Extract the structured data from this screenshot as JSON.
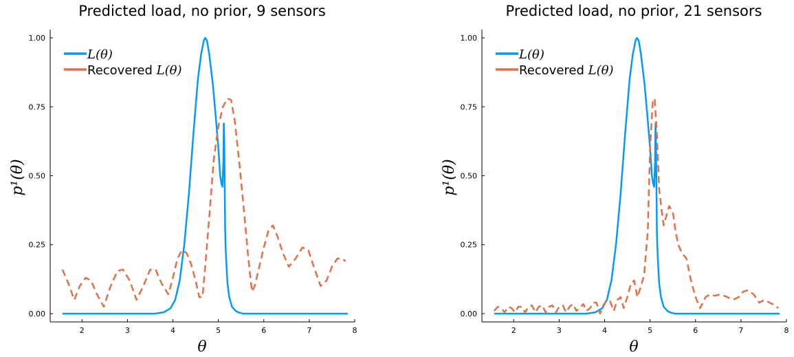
{
  "chart_data": [
    {
      "type": "line",
      "title": "Predicted load, no prior, 9 sensors",
      "xlabel": "θ",
      "ylabel": "p¹(θ)",
      "xlim": [
        1.3,
        8.0
      ],
      "ylim": [
        -0.03,
        1.03
      ],
      "xticks": [
        2,
        3,
        4,
        5,
        6,
        7,
        8
      ],
      "xtick_labels": [
        "2",
        "3",
        "4",
        "5",
        "6",
        "7",
        "8"
      ],
      "yticks": [
        0,
        0.25,
        0.5,
        0.75,
        1.0
      ],
      "ytick_labels": [
        "0.00",
        "0.25",
        "0.50",
        "0.75",
        "1.00"
      ],
      "grid": false,
      "legend_position": "top-left",
      "series": [
        {
          "name": "L(θ)",
          "legend_text": "",
          "legend_math": "L(θ)",
          "color": "#009AFA",
          "style": "solid",
          "x": [
            1.57,
            3.6,
            3.8,
            3.95,
            4.05,
            4.15,
            4.25,
            4.35,
            4.45,
            4.55,
            4.62,
            4.68,
            4.71,
            4.75,
            4.8,
            4.88,
            4.95,
            5.0,
            5.04,
            5.07,
            5.09,
            5.11,
            5.12,
            5.13,
            5.14,
            5.15,
            5.16,
            5.18,
            5.2,
            5.24,
            5.3,
            5.38,
            5.45,
            5.55,
            7.85
          ],
          "y": [
            0.0,
            0.0,
            0.005,
            0.02,
            0.05,
            0.12,
            0.25,
            0.43,
            0.65,
            0.85,
            0.94,
            0.99,
            1.0,
            0.99,
            0.94,
            0.83,
            0.7,
            0.6,
            0.5,
            0.47,
            0.46,
            0.55,
            0.69,
            0.62,
            0.46,
            0.3,
            0.24,
            0.17,
            0.11,
            0.06,
            0.025,
            0.01,
            0.004,
            0.0,
            0.0
          ]
        },
        {
          "name": "Recovered L(θ)",
          "legend_text": "Recovered ",
          "legend_math": "L(θ)",
          "color": "#E26F46",
          "style": "dashed",
          "x": [
            1.57,
            1.7,
            1.83,
            1.95,
            2.08,
            2.2,
            2.33,
            2.48,
            2.63,
            2.78,
            2.9,
            3.05,
            3.2,
            3.35,
            3.5,
            3.62,
            3.75,
            3.9,
            4.0,
            4.1,
            4.2,
            4.3,
            4.4,
            4.5,
            4.58,
            4.65,
            4.7,
            4.8,
            4.9,
            5.0,
            5.1,
            5.2,
            5.28,
            5.36,
            5.46,
            5.56,
            5.66,
            5.74,
            5.8,
            5.9,
            6.0,
            6.1,
            6.2,
            6.3,
            6.42,
            6.55,
            6.7,
            6.85,
            6.98,
            7.1,
            7.25,
            7.38,
            7.5,
            7.62,
            7.72,
            7.8
          ],
          "y": [
            0.16,
            0.11,
            0.05,
            0.1,
            0.13,
            0.12,
            0.07,
            0.025,
            0.1,
            0.155,
            0.16,
            0.12,
            0.05,
            0.1,
            0.16,
            0.16,
            0.11,
            0.07,
            0.13,
            0.2,
            0.23,
            0.22,
            0.18,
            0.12,
            0.06,
            0.06,
            0.15,
            0.35,
            0.56,
            0.68,
            0.75,
            0.78,
            0.775,
            0.7,
            0.55,
            0.38,
            0.2,
            0.08,
            0.1,
            0.17,
            0.24,
            0.3,
            0.32,
            0.28,
            0.22,
            0.17,
            0.2,
            0.24,
            0.23,
            0.17,
            0.1,
            0.12,
            0.17,
            0.2,
            0.2,
            0.19
          ]
        }
      ]
    },
    {
      "type": "line",
      "title": "Predicted load, no prior, 21 sensors",
      "xlabel": "θ",
      "ylabel": "p¹(θ)",
      "xlim": [
        1.3,
        8.0
      ],
      "ylim": [
        -0.03,
        1.03
      ],
      "xticks": [
        2,
        3,
        4,
        5,
        6,
        7,
        8
      ],
      "xtick_labels": [
        "2",
        "3",
        "4",
        "5",
        "6",
        "7",
        "8"
      ],
      "yticks": [
        0,
        0.25,
        0.5,
        0.75,
        1.0
      ],
      "ytick_labels": [
        "0.00",
        "0.25",
        "0.50",
        "0.75",
        "1.00"
      ],
      "grid": false,
      "legend_position": "top-left",
      "series": [
        {
          "name": "L(θ)",
          "legend_text": "",
          "legend_math": "L(θ)",
          "color": "#009AFA",
          "style": "solid",
          "x": [
            1.57,
            3.6,
            3.8,
            3.95,
            4.05,
            4.15,
            4.25,
            4.35,
            4.45,
            4.55,
            4.62,
            4.68,
            4.71,
            4.75,
            4.8,
            4.88,
            4.95,
            5.0,
            5.04,
            5.07,
            5.09,
            5.11,
            5.12,
            5.13,
            5.14,
            5.15,
            5.16,
            5.18,
            5.2,
            5.24,
            5.3,
            5.38,
            5.45,
            5.55,
            7.85
          ],
          "y": [
            0.0,
            0.0,
            0.005,
            0.02,
            0.05,
            0.12,
            0.25,
            0.43,
            0.65,
            0.85,
            0.94,
            0.99,
            1.0,
            0.99,
            0.94,
            0.83,
            0.7,
            0.6,
            0.5,
            0.47,
            0.46,
            0.55,
            0.69,
            0.62,
            0.46,
            0.3,
            0.24,
            0.17,
            0.11,
            0.06,
            0.025,
            0.01,
            0.004,
            0.0,
            0.0
          ]
        },
        {
          "name": "Recovered L(θ)",
          "legend_text": "Recovered ",
          "legend_math": "L(θ)",
          "color": "#E26F46",
          "style": "dashed",
          "x": [
            1.57,
            1.65,
            1.72,
            1.8,
            1.88,
            1.95,
            2.03,
            2.1,
            2.18,
            2.25,
            2.33,
            2.4,
            2.48,
            2.55,
            2.63,
            2.7,
            2.78,
            2.85,
            2.93,
            3.0,
            3.08,
            3.15,
            3.23,
            3.3,
            3.38,
            3.45,
            3.53,
            3.6,
            3.68,
            3.75,
            3.82,
            3.9,
            3.97,
            4.05,
            4.12,
            4.2,
            4.28,
            4.35,
            4.42,
            4.5,
            4.58,
            4.65,
            4.72,
            4.8,
            4.87,
            4.95,
            5.0,
            5.06,
            5.1,
            5.15,
            5.2,
            5.25,
            5.3,
            5.35,
            5.42,
            5.5,
            5.56,
            5.62,
            5.7,
            5.8,
            5.9,
            6.0,
            6.1,
            6.22,
            6.32,
            6.42,
            6.55,
            6.7,
            6.82,
            6.95,
            7.05,
            7.15,
            7.28,
            7.4,
            7.52,
            7.63,
            7.75,
            7.82
          ],
          "y": [
            0.01,
            0.025,
            0.02,
            0.005,
            0.025,
            0.02,
            0.005,
            0.025,
            0.025,
            0.005,
            0.025,
            0.03,
            0.005,
            0.025,
            0.03,
            0.005,
            0.025,
            0.03,
            0.005,
            0.025,
            0.03,
            0.005,
            0.025,
            0.035,
            0.01,
            0.02,
            0.035,
            0.01,
            0.02,
            0.04,
            0.04,
            0.0,
            0.03,
            0.05,
            0.045,
            0.01,
            0.05,
            0.06,
            0.02,
            0.06,
            0.11,
            0.12,
            0.06,
            0.1,
            0.14,
            0.3,
            0.6,
            0.77,
            0.78,
            0.65,
            0.45,
            0.38,
            0.32,
            0.35,
            0.39,
            0.37,
            0.3,
            0.25,
            0.22,
            0.2,
            0.12,
            0.06,
            0.02,
            0.06,
            0.07,
            0.065,
            0.07,
            0.06,
            0.05,
            0.06,
            0.08,
            0.085,
            0.07,
            0.04,
            0.05,
            0.04,
            0.03,
            0.02
          ]
        }
      ]
    }
  ]
}
